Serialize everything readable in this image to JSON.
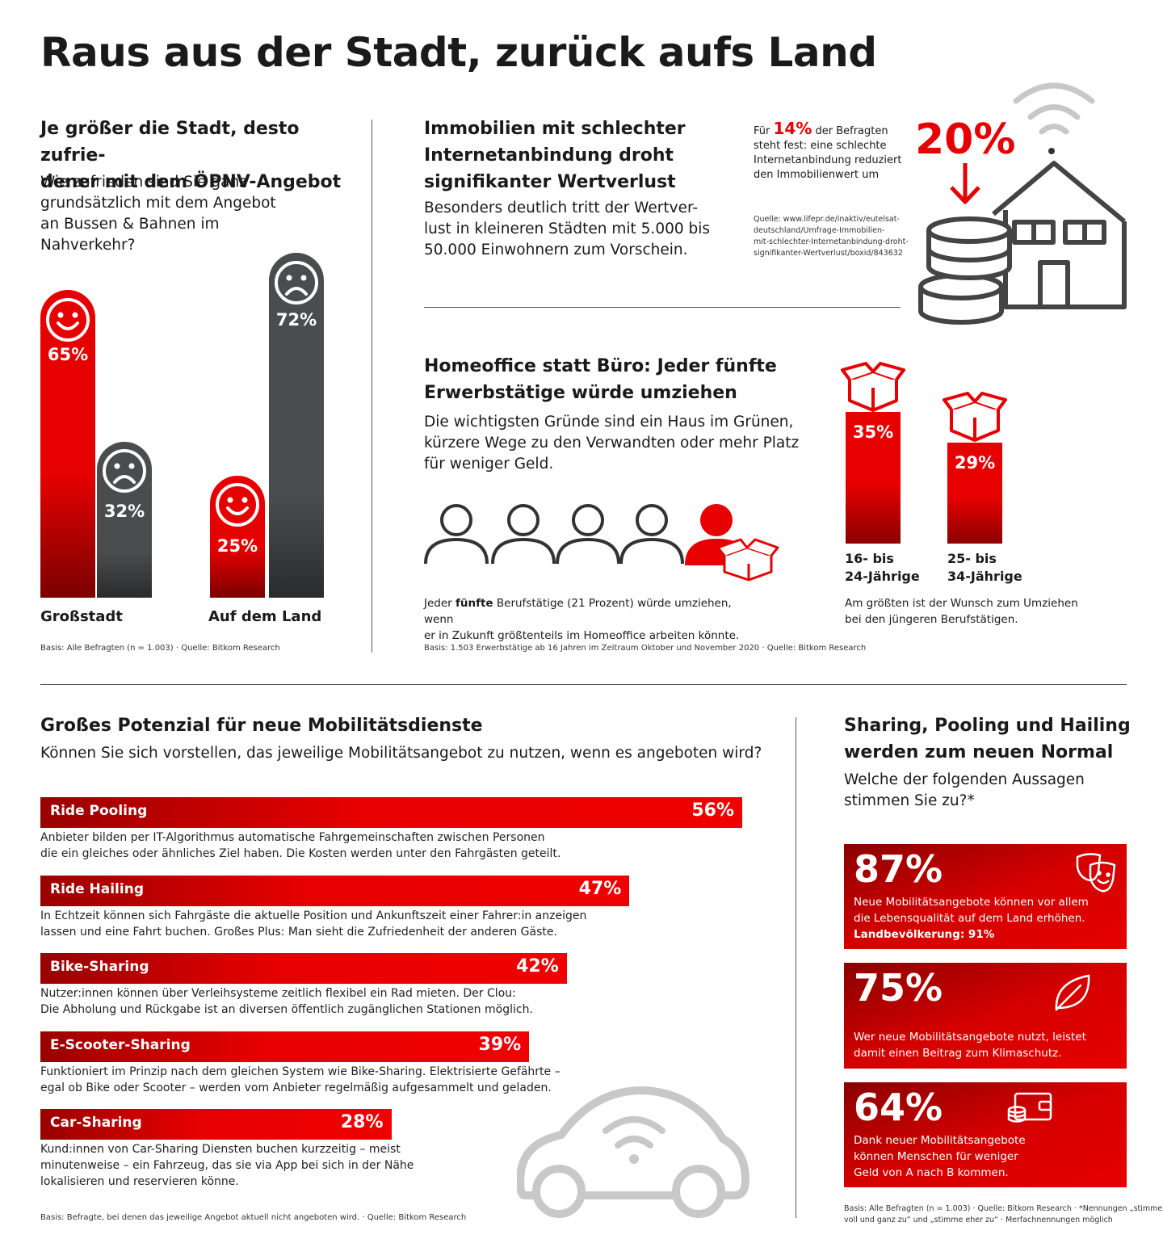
{
  "title": "Raus aus der Stadt, zurück aufs Land",
  "section1": {
    "heading": "Je größer die Stadt, desto zufrie-\ndener mit dem ÖPNV-Angebot",
    "question": "Wie zufrieden sind Sie ganz\ngrundsätzlich mit dem Angebot\nan Bussen & Bahnen im\nNahverkehr?",
    "group1_label": "Großstadt",
    "group2_label": "Auf dem Land",
    "bar1": "65%",
    "bar2": "32%",
    "bar3": "25%",
    "bar4": "72%",
    "source": "Basis: Alle Befragten (n = 1.003) · Quelle: Bitkom Research"
  },
  "section2": {
    "heading": "Immobilien mit schlechter\nInternetanbindung droht\nsignifikanter Wertverlust",
    "body": "Besonders deutlich tritt der Wertver-\nlust in kleineren Städten mit 5.000 bis\n50.000 Einwohnern zum Vorschein.",
    "note_prefix": "Für ",
    "note_pct": "14%",
    "note_suffix": " der Befragten\nsteht fest: eine schlechte\nInternetanbindung reduziert\nden Immobilienwert um",
    "big_pct": "20%",
    "source": "Quelle: www.lifepr.de/inaktiv/eutelsat-\ndeutschland/Umfrage-Immobilien-\nmit-schlechter-Internetanbindung-droht-\nsignifikanter-Wertverlust/boxid/843632"
  },
  "section3": {
    "heading": "Homeoffice statt Büro: Jeder fünfte\nErwerbstätige würde umziehen",
    "body": "Die wichtigsten Gründe sind ein Haus im Grünen,\nkürzere Wege zu den Verwandten oder mehr Platz\nfür weniger Geld.",
    "caption_prefix": "Jeder ",
    "caption_bold": "fünfte",
    "caption_suffix": " Berufstätige (21 Prozent) würde umziehen, wenn\ner in Zukunft größtenteils im Homeoffice arbeiten könnte.",
    "age1_pct": "35%",
    "age2_pct": "29%",
    "age1_label": "16- bis\n24-Jährige",
    "age2_label": "25- bis\n34-Jährige",
    "age_caption": "Am größten ist der Wunsch zum Umziehen\nbei den jüngeren Berufstätigen.",
    "source": "Basis: 1.503 Erwerbstätige ab 16 Jahren im Zeitraum Oktober und November 2020 · Quelle: Bitkom Research"
  },
  "section4": {
    "heading": "Großes Potenzial für neue Mobilitätsdienste",
    "question": "Können Sie sich vorstellen, das jeweilige Mobilitätsangebot zu nutzen, wenn es angeboten wird?",
    "source": "Basis: Befragte, bei denen das jeweilige Angebot aktuell nicht angeboten wird. · Quelle: Bitkom Research"
  },
  "section5": {
    "heading": "Sharing, Pooling und Hailing\nwerden zum neuen Normal",
    "question": "Welche der folgenden Aussagen\nstimmen Sie zu?*",
    "stats": [
      {
        "value": "87%",
        "text": "Neue Mobilitätsangebote können vor allem\ndie Lebensqualität auf dem Land erhöhen.",
        "bold": "Landbevölkerung: 91%"
      },
      {
        "value": "75%",
        "text": "Wer neue Mobilitätsangebote nutzt, leistet\ndamit einen Beitrag zum Klimaschutz.",
        "bold": ""
      },
      {
        "value": "64%",
        "text": "Dank neuer Mobilitätsangebote\nkönnen Menschen für weniger\nGeld von A nach B kommen.",
        "bold": ""
      }
    ],
    "source": "Basis: Alle Befragten (n = 1.003) · Quelle: Bitkom Research · *Nennungen „stimme\nvoll und ganz zu“ und „stimme eher zu“ · Merfachnennungen möglich"
  },
  "colors": {
    "red": "#e60000",
    "grey": "#4a4d4e"
  },
  "chart_data": [
    {
      "type": "bar",
      "title": "Je größer die Stadt, desto zufriedener mit dem ÖPNV-Angebot",
      "categories": [
        "Großstadt",
        "Auf dem Land"
      ],
      "series": [
        {
          "name": "",
          "values": [
            65,
            25
          ]
        },
        {
          "name": "",
          "values": [
            32,
            72
          ]
        }
      ],
      "unit": "%"
    },
    {
      "type": "bar",
      "title": "Homeoffice statt Büro: Jeder fünfte Erwerbstätige würde umziehen",
      "categories": [
        "16- bis 24-Jährige",
        "25- bis 34-Jährige"
      ],
      "values": [
        35,
        29
      ],
      "unit": "%"
    },
    {
      "type": "bar",
      "title": "Großes Potenzial für neue Mobilitätsdienste",
      "orientation": "horizontal",
      "categories": [
        "Ride Pooling",
        "Ride Hailing",
        "Bike-Sharing",
        "E-Scooter-Sharing",
        "Car-Sharing"
      ],
      "values": [
        56,
        47,
        42,
        39,
        28
      ],
      "labels": [
        "56%",
        "47%",
        "42%",
        "39%",
        "28%"
      ],
      "descriptions": [
        "Anbieter bilden per IT-Algorithmus automatische Fahrgemeinschaften zwischen Personen\ndie ein gleiches oder ähnliches Ziel haben. Die Kosten werden unter den Fahrgästen geteilt.",
        "In Echtzeit können sich Fahrgäste die aktuelle Position und Ankunftszeit einer Fahrer:in anzeigen\nlassen und eine Fahrt buchen. Großes Plus: Man sieht die Zufriedenheit der anderen Gäste.",
        "Nutzer:innen können über Verleihsysteme zeitlich flexibel ein Rad mieten. Der Clou:\nDie Abholung und Rückgabe ist an diversen öffentlich zugänglichen Stationen möglich.",
        "Funktioniert im Prinzip nach dem gleichen System wie Bike-Sharing. Elektrisierte Gefährte –\negal ob Bike oder Scooter – werden vom Anbieter regelmäßig aufgesammelt und geladen.",
        "Kund:innen von Car-Sharing Diensten buchen kurzzeitig – meist\nminutenweise – ein Fahrzeug, das sie via App bei sich in der Nähe\nlokalisieren und reservieren könne."
      ],
      "unit": "%"
    }
  ]
}
